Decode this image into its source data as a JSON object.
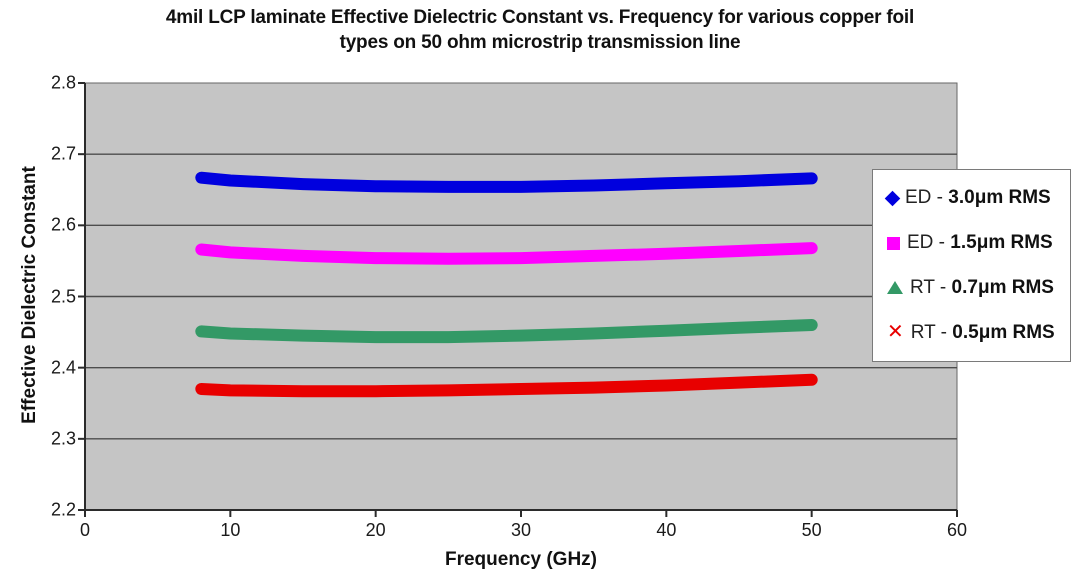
{
  "title": {
    "line1": "4mil LCP laminate Effective Dielectric Constant vs. Frequency for various copper foil",
    "line2": "types on 50 ohm microstrip transmission line"
  },
  "axes": {
    "y": {
      "label": "Effective Dielectric Constant",
      "ticks": [
        "2.8",
        "2.7",
        "2.6",
        "2.5",
        "2.4",
        "2.3",
        "2.2"
      ],
      "min": 2.2,
      "max": 2.8
    },
    "x": {
      "label": "Frequency (GHz)",
      "ticks": [
        "0",
        "10",
        "20",
        "30",
        "40",
        "50",
        "60"
      ],
      "min": 0,
      "max": 60
    }
  },
  "legend": {
    "items": [
      {
        "marker": "diamond",
        "color": "#0000DE",
        "prefix": "ED - ",
        "label": "3.0μm RMS"
      },
      {
        "marker": "square",
        "color": "#FF00FF",
        "prefix": "ED - ",
        "label": "1.5μm RMS"
      },
      {
        "marker": "triangle",
        "color": "#339966",
        "prefix": "RT - ",
        "label": "0.7μm RMS"
      },
      {
        "marker": "x",
        "color": "#E80000",
        "prefix": "RT - ",
        "label": "0.5μm RMS",
        "glyph": "✕"
      }
    ]
  },
  "chart_data": {
    "type": "line",
    "title": "4mil LCP laminate Effective Dielectric Constant vs. Frequency for various copper foil types on 50 ohm microstrip transmission line",
    "xlabel": "Frequency (GHz)",
    "ylabel": "Effective Dielectric Constant",
    "xlim": [
      0,
      60
    ],
    "ylim": [
      2.2,
      2.8
    ],
    "x_tick_step": 10,
    "y_tick_step": 0.1,
    "grid": "horizontal",
    "legend_position": "right",
    "plot_background": "#c5c5c5",
    "x": [
      8,
      10,
      15,
      20,
      25,
      30,
      35,
      40,
      45,
      50
    ],
    "series": [
      {
        "name": "ED - 3.0μm RMS",
        "color": "#0000DE",
        "marker": "diamond",
        "values": [
          2.667,
          2.663,
          2.658,
          2.655,
          2.654,
          2.654,
          2.656,
          2.659,
          2.662,
          2.666
        ]
      },
      {
        "name": "ED - 1.5μm RMS",
        "color": "#FF00FF",
        "marker": "square",
        "values": [
          2.566,
          2.562,
          2.557,
          2.554,
          2.553,
          2.554,
          2.557,
          2.56,
          2.564,
          2.568
        ]
      },
      {
        "name": "RT - 0.7μm RMS",
        "color": "#339966",
        "marker": "triangle",
        "values": [
          2.451,
          2.448,
          2.445,
          2.443,
          2.443,
          2.445,
          2.448,
          2.452,
          2.456,
          2.46
        ]
      },
      {
        "name": "RT - 0.5μm RMS",
        "color": "#E80000",
        "marker": "x",
        "values": [
          2.37,
          2.368,
          2.367,
          2.367,
          2.368,
          2.37,
          2.372,
          2.375,
          2.379,
          2.383
        ]
      }
    ]
  }
}
